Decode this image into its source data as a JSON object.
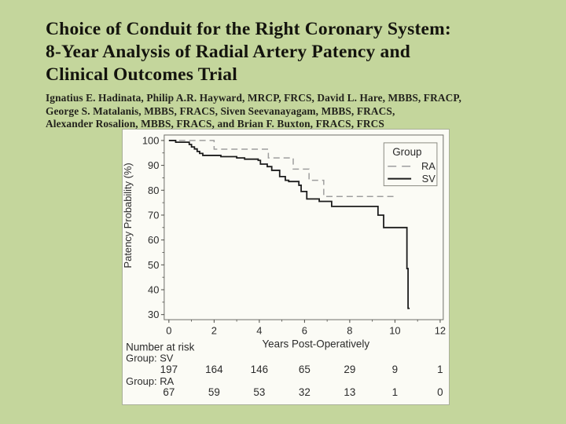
{
  "slide": {
    "background_color": "#c4d69c",
    "title_lines": [
      "Choice of Conduit for the Right Coronary System:",
      "8-Year Analysis of Radial Artery Patency and",
      "Clinical Outcomes Trial"
    ],
    "author_lines": [
      "Ignatius E. Hadinata, Philip A.R. Hayward, MRCP, FRCS, David L. Hare, MBBS, FRACP,",
      "George S. Matalanis, MBBS, FRACS, Siven Seevanayagam, MBBS, FRACS,",
      "Alexander Rosalion, MBBS, FRACS, and Brian F. Buxton, FRACS, FRCS"
    ]
  },
  "chart_data": {
    "type": "line",
    "subtype": "kaplan-meier-step",
    "title": "",
    "xlabel": "Years Post-Operatively",
    "ylabel": "Patency Probability (%)",
    "xlim": [
      0,
      12
    ],
    "ylim": [
      30,
      100
    ],
    "x_ticks": [
      0,
      2,
      4,
      6,
      8,
      10,
      12
    ],
    "y_ticks": [
      30,
      40,
      50,
      60,
      70,
      80,
      90,
      100
    ],
    "grid": false,
    "legend": {
      "title": "Group",
      "position": "top-right",
      "entries": [
        {
          "label": "RA",
          "line": "dashed",
          "color": "#9e9e9e"
        },
        {
          "label": "SV",
          "line": "solid",
          "color": "#1c1c1c"
        }
      ]
    },
    "series": [
      {
        "name": "RA",
        "line": "dashed",
        "color": "#9e9e9e",
        "steps": [
          [
            0,
            100
          ],
          [
            2.0,
            96.5
          ],
          [
            4.4,
            93
          ],
          [
            5.5,
            88.5
          ],
          [
            6.2,
            84
          ],
          [
            6.85,
            77.5
          ]
        ],
        "end_x": 10.1
      },
      {
        "name": "SV",
        "line": "solid",
        "color": "#1c1c1c",
        "steps": [
          [
            0,
            100
          ],
          [
            0.3,
            99.3
          ],
          [
            0.9,
            98.4
          ],
          [
            1.0,
            97.4
          ],
          [
            1.13,
            96.6
          ],
          [
            1.25,
            95.6
          ],
          [
            1.36,
            94.8
          ],
          [
            1.5,
            94
          ],
          [
            2.3,
            93.5
          ],
          [
            3.0,
            93
          ],
          [
            3.35,
            92.5
          ],
          [
            3.95,
            92
          ],
          [
            4.05,
            90.5
          ],
          [
            4.35,
            89.5
          ],
          [
            4.55,
            88
          ],
          [
            4.9,
            85.5
          ],
          [
            5.15,
            84
          ],
          [
            5.3,
            83.5
          ],
          [
            5.75,
            82
          ],
          [
            5.85,
            79.5
          ],
          [
            6.1,
            76.5
          ],
          [
            6.65,
            75.5
          ],
          [
            7.2,
            73.5
          ],
          [
            9.25,
            70
          ],
          [
            9.5,
            65
          ],
          [
            10.53,
            48.5
          ],
          [
            10.58,
            32.5
          ]
        ],
        "end_x": 10.65
      }
    ],
    "number_at_risk": {
      "heading": "Number at risk",
      "time_points": [
        0,
        2,
        4,
        6,
        8,
        10,
        12
      ],
      "rows": [
        {
          "label": "Group: SV",
          "values": [
            197,
            164,
            146,
            65,
            29,
            9,
            1
          ]
        },
        {
          "label": "Group: RA",
          "values": [
            67,
            59,
            53,
            32,
            13,
            1,
            0
          ]
        }
      ]
    }
  }
}
